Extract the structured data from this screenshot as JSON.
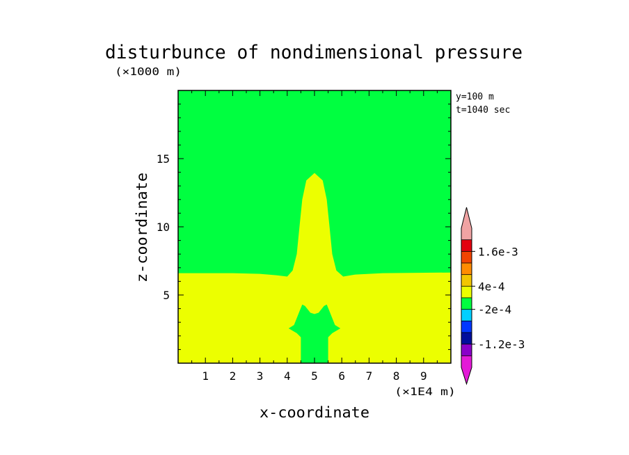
{
  "chart_data": {
    "type": "heatmap",
    "title": "disturbunce of nondimensional pressure",
    "z_unit_label": "(×1000 m)",
    "x_unit_label": "(×1E4 m)",
    "xlabel": "x-coordinate",
    "ylabel": "z-coordinate",
    "info": {
      "y_line": "y=100 m",
      "t_line": "t=1040 sec"
    },
    "xlim": [
      0,
      10
    ],
    "ylim": [
      0,
      20
    ],
    "x_ticks": [
      1,
      2,
      3,
      4,
      5,
      6,
      7,
      8,
      9
    ],
    "y_ticks": [
      5,
      10,
      15
    ],
    "background_color": "#00ff40",
    "regions": [
      {
        "name": "lower layer",
        "color": "#ecff00",
        "boundary": [
          [
            0,
            6.6
          ],
          [
            2.0,
            6.6
          ],
          [
            3.0,
            6.55
          ],
          [
            3.6,
            6.45
          ],
          [
            4.0,
            6.35
          ],
          [
            4.2,
            6.8
          ],
          [
            4.35,
            8.0
          ],
          [
            4.45,
            10.0
          ],
          [
            4.55,
            12.0
          ],
          [
            4.7,
            13.4
          ],
          [
            5.0,
            13.95
          ],
          [
            5.3,
            13.4
          ],
          [
            5.45,
            12.0
          ],
          [
            5.55,
            10.0
          ],
          [
            5.65,
            8.0
          ],
          [
            5.8,
            6.8
          ],
          [
            6.05,
            6.35
          ],
          [
            6.5,
            6.5
          ],
          [
            7.5,
            6.6
          ],
          [
            10,
            6.65
          ],
          [
            10,
            0
          ],
          [
            0,
            0
          ]
        ]
      },
      {
        "name": "low-level core",
        "color": "#00ff40",
        "boundary": [
          [
            4.5,
            0
          ],
          [
            4.5,
            1.9
          ],
          [
            4.35,
            2.2
          ],
          [
            4.05,
            2.55
          ],
          [
            4.25,
            2.8
          ],
          [
            4.45,
            3.8
          ],
          [
            4.55,
            4.3
          ],
          [
            4.65,
            4.2
          ],
          [
            4.85,
            3.7
          ],
          [
            5.0,
            3.6
          ],
          [
            5.15,
            3.7
          ],
          [
            5.35,
            4.2
          ],
          [
            5.45,
            4.3
          ],
          [
            5.55,
            3.8
          ],
          [
            5.75,
            2.8
          ],
          [
            5.95,
            2.55
          ],
          [
            5.65,
            2.2
          ],
          [
            5.5,
            1.9
          ],
          [
            5.5,
            0
          ]
        ]
      }
    ],
    "colorbar": {
      "colors": [
        "#e31ad7",
        "#8a00c9",
        "#000e9c",
        "#0037ff",
        "#00cfff",
        "#00ff40",
        "#ecff00",
        "#f2c600",
        "#ff8c00",
        "#f24400",
        "#e3000f",
        "#f0a3a3"
      ],
      "labels": [
        {
          "text": "1.6e-3",
          "level": 10
        },
        {
          "text": "4e-4",
          "level": 7
        },
        {
          "text": "-2e-4",
          "level": 5
        },
        {
          "text": "-1.2e-3",
          "level": 2
        }
      ]
    }
  }
}
